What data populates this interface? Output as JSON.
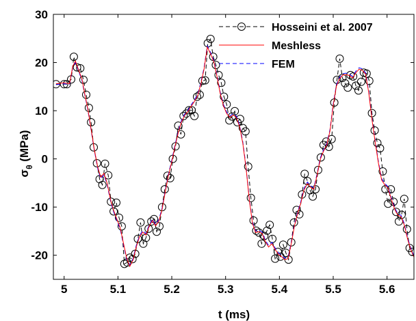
{
  "chart_data": {
    "type": "line",
    "title": "",
    "xlabel": "t (ms)",
    "ylabel_main": "σ",
    "ylabel_sub": "θ",
    "ylabel_unit": " (MPa)",
    "xlim": [
      4.98,
      5.65
    ],
    "ylim": [
      -25,
      30
    ],
    "xticks": [
      5,
      5.1,
      5.2,
      5.3,
      5.4,
      5.5,
      5.6
    ],
    "xtick_labels": [
      "5",
      "5.1",
      "5.2",
      "5.3",
      "5.4",
      "5.5",
      "5.6"
    ],
    "yticks": [
      -20,
      -10,
      0,
      10,
      20,
      30
    ],
    "ytick_labels": [
      "-20",
      "-10",
      "0",
      "10",
      "20",
      "30"
    ],
    "grid": false,
    "legend_position": "top-right",
    "colors": {
      "hosseini": "#000000",
      "meshless": "#ff0000",
      "fem": "#0000ff"
    },
    "series": [
      {
        "name": "Hosseini et al. 2007",
        "style": "dashed-circle",
        "x": [
          4.985,
          5.0,
          5.005,
          5.013,
          5.018,
          5.024,
          5.03,
          5.036,
          5.041,
          5.046,
          5.05,
          5.055,
          5.061,
          5.066,
          5.071,
          5.076,
          5.082,
          5.087,
          5.092,
          5.097,
          5.102,
          5.107,
          5.112,
          5.117,
          5.122,
          5.127,
          5.132,
          5.137,
          5.142,
          5.147,
          5.152,
          5.157,
          5.162,
          5.167,
          5.172,
          5.177,
          5.182,
          5.187,
          5.192,
          5.197,
          5.202,
          5.207,
          5.212,
          5.217,
          5.222,
          5.227,
          5.232,
          5.237,
          5.242,
          5.247,
          5.252,
          5.257,
          5.262,
          5.267,
          5.272,
          5.277,
          5.282,
          5.287,
          5.292,
          5.297,
          5.302,
          5.307,
          5.312,
          5.317,
          5.322,
          5.327,
          5.332,
          5.337,
          5.342,
          5.347,
          5.352,
          5.357,
          5.362,
          5.367,
          5.372,
          5.377,
          5.382,
          5.387,
          5.392,
          5.397,
          5.402,
          5.407,
          5.412,
          5.417,
          5.422,
          5.427,
          5.432,
          5.437,
          5.442,
          5.447,
          5.452,
          5.457,
          5.462,
          5.467,
          5.472,
          5.477,
          5.482,
          5.487,
          5.492,
          5.497,
          5.502,
          5.507,
          5.512,
          5.517,
          5.522,
          5.527,
          5.532,
          5.537,
          5.542,
          5.547,
          5.552,
          5.557,
          5.562,
          5.567,
          5.572,
          5.577,
          5.582,
          5.587,
          5.592,
          5.597,
          5.602,
          5.607,
          5.612,
          5.617,
          5.622,
          5.627,
          5.632,
          5.637,
          5.642,
          5.647
        ],
        "y": [
          15.5,
          15.5,
          15.5,
          16.5,
          21.2,
          19.0,
          18.8,
          16.4,
          13.3,
          10.6,
          7.6,
          2.4,
          -0.9,
          -4.2,
          -5.4,
          -1.0,
          -3.4,
          -8.9,
          -10.9,
          -9.1,
          -12.2,
          -14.0,
          -21.8,
          -21.5,
          -20.5,
          -20.8,
          -19.7,
          -16.6,
          -13.2,
          -17.6,
          -16.4,
          -14.5,
          -13.0,
          -12.5,
          -15.1,
          -14.0,
          -10.0,
          -6.3,
          -3.5,
          -4.0,
          0.0,
          2.6,
          6.9,
          5.1,
          8.9,
          9.4,
          10.1,
          10.1,
          8.9,
          12.9,
          13.3,
          16.2,
          16.3,
          24.0,
          24.9,
          21.2,
          19.5,
          17.4,
          15.8,
          12.9,
          11.3,
          8.0,
          8.8,
          9.9,
          7.6,
          8.3,
          6.4,
          5.7,
          -1.6,
          -8.1,
          -12.8,
          -14.9,
          -15.3,
          -17.6,
          -16.0,
          -14.9,
          -13.7,
          -16.6,
          -20.7,
          -19.3,
          -20.3,
          -17.8,
          -19.5,
          -20.9,
          -17.3,
          -13.2,
          -10.6,
          -11.5,
          -7.4,
          -3.1,
          -4.6,
          -6.5,
          -7.8,
          -6.3,
          -2.3,
          0.3,
          2.9,
          3.6,
          2.5,
          4.1,
          11.7,
          16.4,
          20.8,
          16.8,
          15.7,
          14.8,
          17.4,
          17.1,
          15.2,
          14.2,
          16.0,
          17.9,
          17.7,
          16.2,
          9.5,
          5.9,
          3.3,
          2.2,
          -2.6,
          -6.3,
          -9.3,
          -6.3,
          -8.9,
          -11.0,
          -13.0,
          -11.6,
          -8.3,
          -14.6,
          -18.5,
          -19.3
        ]
      },
      {
        "name": "Meshless",
        "style": "solid",
        "x": [
          4.985,
          5.0,
          5.01,
          5.016,
          5.021,
          5.027,
          5.033,
          5.038,
          5.044,
          5.05,
          5.056,
          5.062,
          5.068,
          5.074,
          5.08,
          5.086,
          5.092,
          5.098,
          5.104,
          5.11,
          5.116,
          5.122,
          5.128,
          5.134,
          5.14,
          5.146,
          5.152,
          5.158,
          5.164,
          5.17,
          5.176,
          5.182,
          5.188,
          5.194,
          5.2,
          5.206,
          5.212,
          5.218,
          5.224,
          5.23,
          5.236,
          5.242,
          5.248,
          5.254,
          5.26,
          5.266,
          5.272,
          5.278,
          5.284,
          5.29,
          5.296,
          5.302,
          5.308,
          5.314,
          5.32,
          5.326,
          5.332,
          5.338,
          5.344,
          5.35,
          5.356,
          5.362,
          5.368,
          5.374,
          5.38,
          5.386,
          5.392,
          5.398,
          5.404,
          5.41,
          5.416,
          5.422,
          5.428,
          5.434,
          5.44,
          5.446,
          5.452,
          5.458,
          5.464,
          5.47,
          5.476,
          5.482,
          5.488,
          5.494,
          5.5,
          5.506,
          5.512,
          5.518,
          5.524,
          5.53,
          5.536,
          5.542,
          5.548,
          5.554,
          5.56,
          5.566,
          5.572,
          5.578,
          5.584,
          5.59,
          5.596,
          5.602,
          5.608,
          5.614,
          5.62,
          5.626,
          5.632,
          5.638,
          5.644,
          5.65
        ],
        "y": [
          15.6,
          15.8,
          15.6,
          19.2,
          20.3,
          18.4,
          16.6,
          13.7,
          10.4,
          6.2,
          2.0,
          -1.5,
          -3.8,
          -3.0,
          -5.1,
          -8.4,
          -10.7,
          -12.5,
          -14.2,
          -17.4,
          -20.5,
          -22.3,
          -21.0,
          -18.3,
          -16.2,
          -15.2,
          -15.8,
          -14.0,
          -12.8,
          -13.9,
          -12.9,
          -10.5,
          -6.8,
          -3.4,
          -0.6,
          2.6,
          5.4,
          7.7,
          9.0,
          9.8,
          10.9,
          11.9,
          13.1,
          15.5,
          18.6,
          23.2,
          21.8,
          20.2,
          17.1,
          13.6,
          11.0,
          9.4,
          8.6,
          9.1,
          8.6,
          6.7,
          3.2,
          -1.9,
          -8.4,
          -13.4,
          -15.3,
          -15.1,
          -15.5,
          -17.2,
          -18.3,
          -17.6,
          -18.8,
          -19.8,
          -20.3,
          -20.9,
          -20.7,
          -17.6,
          -13.9,
          -11.3,
          -9.1,
          -6.4,
          -5.1,
          -5.9,
          -6.3,
          -3.4,
          -0.1,
          1.6,
          2.9,
          5.8,
          11.1,
          15.1,
          16.7,
          17.4,
          17.5,
          17.3,
          16.8,
          17.9,
          18.6,
          18.4,
          17.6,
          13.8,
          8.2,
          3.4,
          -0.9,
          -4.4,
          -5.4,
          -6.1,
          -8.4,
          -10.4,
          -11.7,
          -12.0,
          -13.7,
          -16.6,
          -18.8,
          -20.4
        ]
      },
      {
        "name": "FEM",
        "style": "dashed",
        "x": [
          4.985,
          5.0,
          5.01,
          5.016,
          5.021,
          5.027,
          5.033,
          5.038,
          5.044,
          5.05,
          5.056,
          5.062,
          5.068,
          5.074,
          5.08,
          5.086,
          5.092,
          5.098,
          5.104,
          5.11,
          5.116,
          5.122,
          5.128,
          5.134,
          5.14,
          5.146,
          5.152,
          5.158,
          5.164,
          5.17,
          5.176,
          5.182,
          5.188,
          5.194,
          5.2,
          5.206,
          5.212,
          5.218,
          5.224,
          5.23,
          5.236,
          5.242,
          5.248,
          5.254,
          5.26,
          5.266,
          5.272,
          5.278,
          5.284,
          5.29,
          5.296,
          5.302,
          5.308,
          5.314,
          5.32,
          5.326,
          5.332,
          5.338,
          5.344,
          5.35,
          5.356,
          5.362,
          5.368,
          5.374,
          5.38,
          5.386,
          5.392,
          5.398,
          5.404,
          5.41,
          5.416,
          5.422,
          5.428,
          5.434,
          5.44,
          5.446,
          5.452,
          5.458,
          5.464,
          5.47,
          5.476,
          5.482,
          5.488,
          5.494,
          5.5,
          5.506,
          5.512,
          5.518,
          5.524,
          5.53,
          5.536,
          5.542,
          5.548,
          5.554,
          5.56,
          5.566,
          5.572,
          5.578,
          5.584,
          5.59,
          5.596,
          5.602,
          5.608,
          5.614,
          5.62,
          5.626,
          5.632,
          5.638,
          5.644,
          5.65
        ],
        "y": [
          15.4,
          15.6,
          15.4,
          19.0,
          20.0,
          18.2,
          16.3,
          13.5,
          10.2,
          6.0,
          1.8,
          -1.8,
          -4.1,
          -3.3,
          -5.4,
          -8.7,
          -11.0,
          -12.8,
          -14.5,
          -17.7,
          -20.8,
          -22.0,
          -20.7,
          -18.0,
          -15.9,
          -14.9,
          -15.5,
          -13.7,
          -12.5,
          -13.6,
          -12.6,
          -10.2,
          -6.5,
          -3.1,
          -0.3,
          2.9,
          5.7,
          8.0,
          9.3,
          10.1,
          11.2,
          12.2,
          13.4,
          15.8,
          18.9,
          23.5,
          22.1,
          20.5,
          17.4,
          13.9,
          11.3,
          9.7,
          8.9,
          9.4,
          8.9,
          7.0,
          3.5,
          -1.6,
          -8.1,
          -13.1,
          -15.0,
          -14.8,
          -15.2,
          -16.9,
          -18.0,
          -17.3,
          -18.5,
          -19.5,
          -20.0,
          -20.6,
          -20.4,
          -17.3,
          -13.6,
          -11.0,
          -8.8,
          -6.1,
          -4.8,
          -5.6,
          -6.0,
          -3.1,
          0.2,
          1.9,
          3.2,
          6.1,
          11.4,
          15.4,
          17.0,
          17.7,
          17.8,
          17.6,
          17.1,
          18.2,
          18.9,
          18.7,
          17.9,
          14.1,
          8.5,
          3.7,
          -0.6,
          -4.1,
          -5.1,
          -5.8,
          -8.1,
          -10.1,
          -11.4,
          -11.7,
          -13.4,
          -16.3,
          -18.5,
          -20.1
        ]
      }
    ]
  }
}
